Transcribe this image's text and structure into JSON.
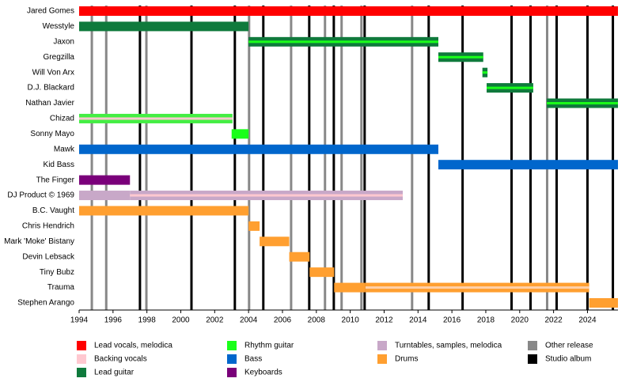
{
  "chart_data": {
    "type": "timeline",
    "xlim": [
      1994,
      2025.8
    ],
    "xticks": [
      1994,
      1996,
      1998,
      2000,
      2002,
      2004,
      2006,
      2008,
      2010,
      2012,
      2014,
      2016,
      2018,
      2020,
      2022,
      2024
    ],
    "members": [
      {
        "name": "Jared Gomes",
        "spans": [
          {
            "start": 1994,
            "end": 2025.8,
            "color": "#ff0000"
          }
        ]
      },
      {
        "name": "Wesstyle",
        "spans": [
          {
            "start": 1994,
            "end": 2004.0,
            "color": "#0f7a3c"
          }
        ]
      },
      {
        "name": "Jaxon",
        "spans": [
          {
            "start": 2004.0,
            "end": 2015.2,
            "color": "#0f7a3c",
            "stripe": "#1aff1a"
          }
        ]
      },
      {
        "name": "Gregzilla",
        "spans": [
          {
            "start": 2015.2,
            "end": 2017.85,
            "color": "#0f7a3c",
            "stripe": "#1aff1a"
          }
        ]
      },
      {
        "name": "Will Von Arx",
        "spans": [
          {
            "start": 2017.8,
            "end": 2018.1,
            "color": "#0f7a3c",
            "stripe": "#1aff1a"
          }
        ]
      },
      {
        "name": "D.J. Blackard",
        "spans": [
          {
            "start": 2018.05,
            "end": 2020.8,
            "color": "#0f7a3c",
            "stripe": "#1aff1a"
          }
        ]
      },
      {
        "name": "Nathan Javier",
        "spans": [
          {
            "start": 2021.6,
            "end": 2025.8,
            "color": "#0f7a3c",
            "stripe": "#1aff1a"
          }
        ]
      },
      {
        "name": "Chizad",
        "spans": [
          {
            "start": 1994,
            "end": 2003.05,
            "color": "#44ee44",
            "stripe": "#ffc8d0"
          }
        ]
      },
      {
        "name": "Sonny Mayo",
        "spans": [
          {
            "start": 2003.0,
            "end": 2004.0,
            "color": "#1aff1a"
          }
        ]
      },
      {
        "name": "Mawk",
        "spans": [
          {
            "start": 1994,
            "end": 2015.2,
            "color": "#0066cc"
          }
        ]
      },
      {
        "name": "Kid Bass",
        "spans": [
          {
            "start": 2015.2,
            "end": 2025.8,
            "color": "#0066cc"
          }
        ]
      },
      {
        "name": "The Finger",
        "spans": [
          {
            "start": 1994,
            "end": 1997.0,
            "color": "#7a007a"
          }
        ]
      },
      {
        "name": "DJ Product © 1969",
        "spans": [
          {
            "start": 1994,
            "end": 1997.0,
            "color": "#c8a8c8"
          },
          {
            "start": 1997.0,
            "end": 2013.1,
            "color": "#c8a8c8",
            "stripe": "#ffc8d0"
          }
        ]
      },
      {
        "name": "B.C. Vaught",
        "spans": [
          {
            "start": 1994,
            "end": 2004.0,
            "color": "#ff9f30"
          }
        ]
      },
      {
        "name": "Chris Hendrich",
        "spans": [
          {
            "start": 2004.0,
            "end": 2004.65,
            "color": "#ff9f30"
          }
        ]
      },
      {
        "name": "Mark 'Moke' Bistany",
        "spans": [
          {
            "start": 2004.65,
            "end": 2006.4,
            "color": "#ff9f30"
          }
        ]
      },
      {
        "name": "Devin Lebsack",
        "spans": [
          {
            "start": 2006.4,
            "end": 2007.6,
            "color": "#ff9f30"
          }
        ]
      },
      {
        "name": "Tiny Bubz",
        "spans": [
          {
            "start": 2007.6,
            "end": 2009.05,
            "color": "#ff9f30"
          }
        ]
      },
      {
        "name": "Trauma",
        "spans": [
          {
            "start": 2009.05,
            "end": 2010.9,
            "color": "#ff9f30"
          },
          {
            "start": 2010.9,
            "end": 2024.1,
            "color": "#ff9f30",
            "stripe": "#ffd0a8"
          }
        ]
      },
      {
        "name": "Stephen Arango",
        "spans": [
          {
            "start": 2024.1,
            "end": 2025.8,
            "color": "#ff9f30"
          }
        ]
      }
    ],
    "roles": [
      {
        "name": "Lead vocals, melodica",
        "color": "#ff0000"
      },
      {
        "name": "Backing vocals",
        "color": "#ffc8d0"
      },
      {
        "name": "Lead guitar",
        "color": "#0f7a3c"
      },
      {
        "name": "Rhythm guitar",
        "color": "#1aff1a"
      },
      {
        "name": "Bass",
        "color": "#0066cc"
      },
      {
        "name": "Keyboards",
        "color": "#7a007a"
      },
      {
        "name": "Turntables, samples, melodica",
        "color": "#c8a8c8"
      },
      {
        "name": "Drums",
        "color": "#ff9f30"
      }
    ],
    "releases": [
      {
        "name": "Other release",
        "color": "#888888",
        "years": [
          1994.75,
          1995.6,
          1997.97,
          2004.03,
          2006.51,
          2008.51,
          2009.49,
          2010.66,
          2013.65,
          2021.62
        ]
      },
      {
        "name": "Studio album",
        "color": "#000000",
        "years": [
          1997.59,
          2000.63,
          2003.19,
          2004.87,
          2007.58,
          2009.03,
          2010.85,
          2014.63,
          2016.63,
          2019.52,
          2020.64,
          2022.18,
          2024.0,
          2025.5
        ]
      }
    ]
  }
}
